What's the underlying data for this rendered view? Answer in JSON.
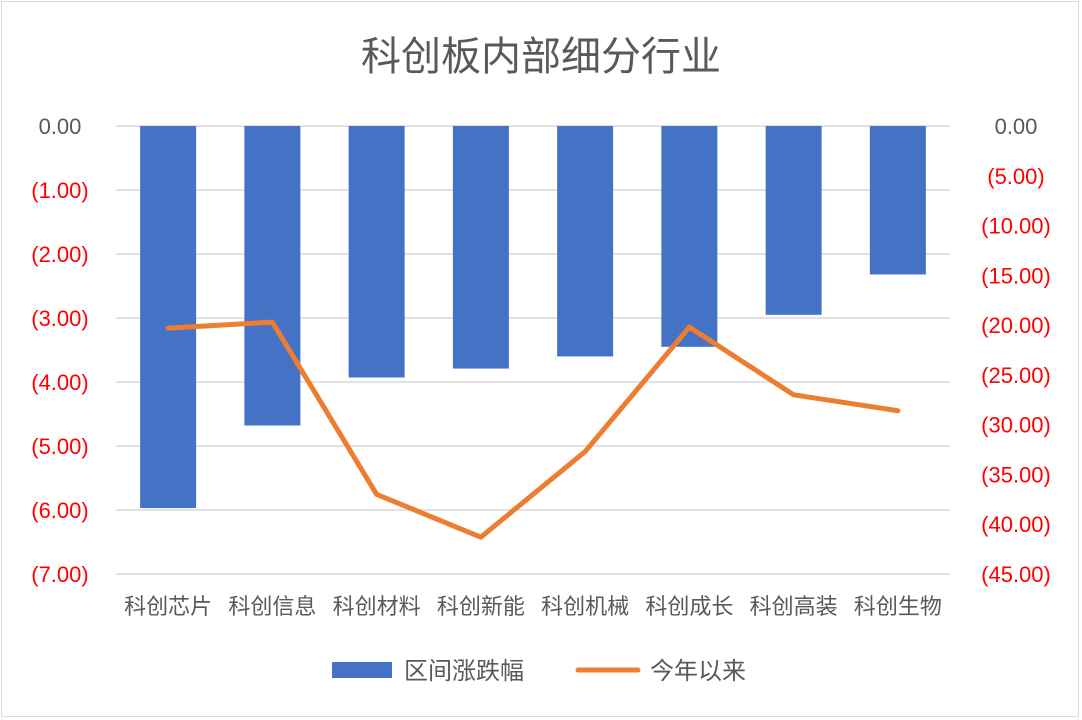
{
  "chart_data": {
    "type": "bar+line",
    "title": "科创板内部细分行业",
    "categories": [
      "科创芯片",
      "科创信息",
      "科创材料",
      "科创新能",
      "科创机械",
      "科创成长",
      "科创高装",
      "科创生物"
    ],
    "series": [
      {
        "name": "区间涨跌幅",
        "type": "bar",
        "axis": "left",
        "color": "#4472C4",
        "values": [
          -5.97,
          -4.68,
          -3.93,
          -3.79,
          -3.6,
          -3.45,
          -2.95,
          -2.32
        ]
      },
      {
        "name": "今年以来",
        "type": "line",
        "axis": "right",
        "color": "#ED7D31",
        "values": [
          -20.3,
          -19.7,
          -37.0,
          -41.3,
          -32.7,
          -20.2,
          -27.0,
          -28.6
        ]
      }
    ],
    "y_left": {
      "min": -7,
      "max": 0,
      "ticks": [
        "0.00",
        "(1.00)",
        "(2.00)",
        "(3.00)",
        "(4.00)",
        "(5.00)",
        "(6.00)",
        "(7.00)"
      ]
    },
    "y_right": {
      "min": -45,
      "max": 0,
      "ticks": [
        "0.00",
        "(5.00)",
        "(10.00)",
        "(15.00)",
        "(20.00)",
        "(25.00)",
        "(30.00)",
        "(35.00)",
        "(40.00)",
        "(45.00)"
      ]
    },
    "grid": true,
    "legend_position": "bottom"
  }
}
